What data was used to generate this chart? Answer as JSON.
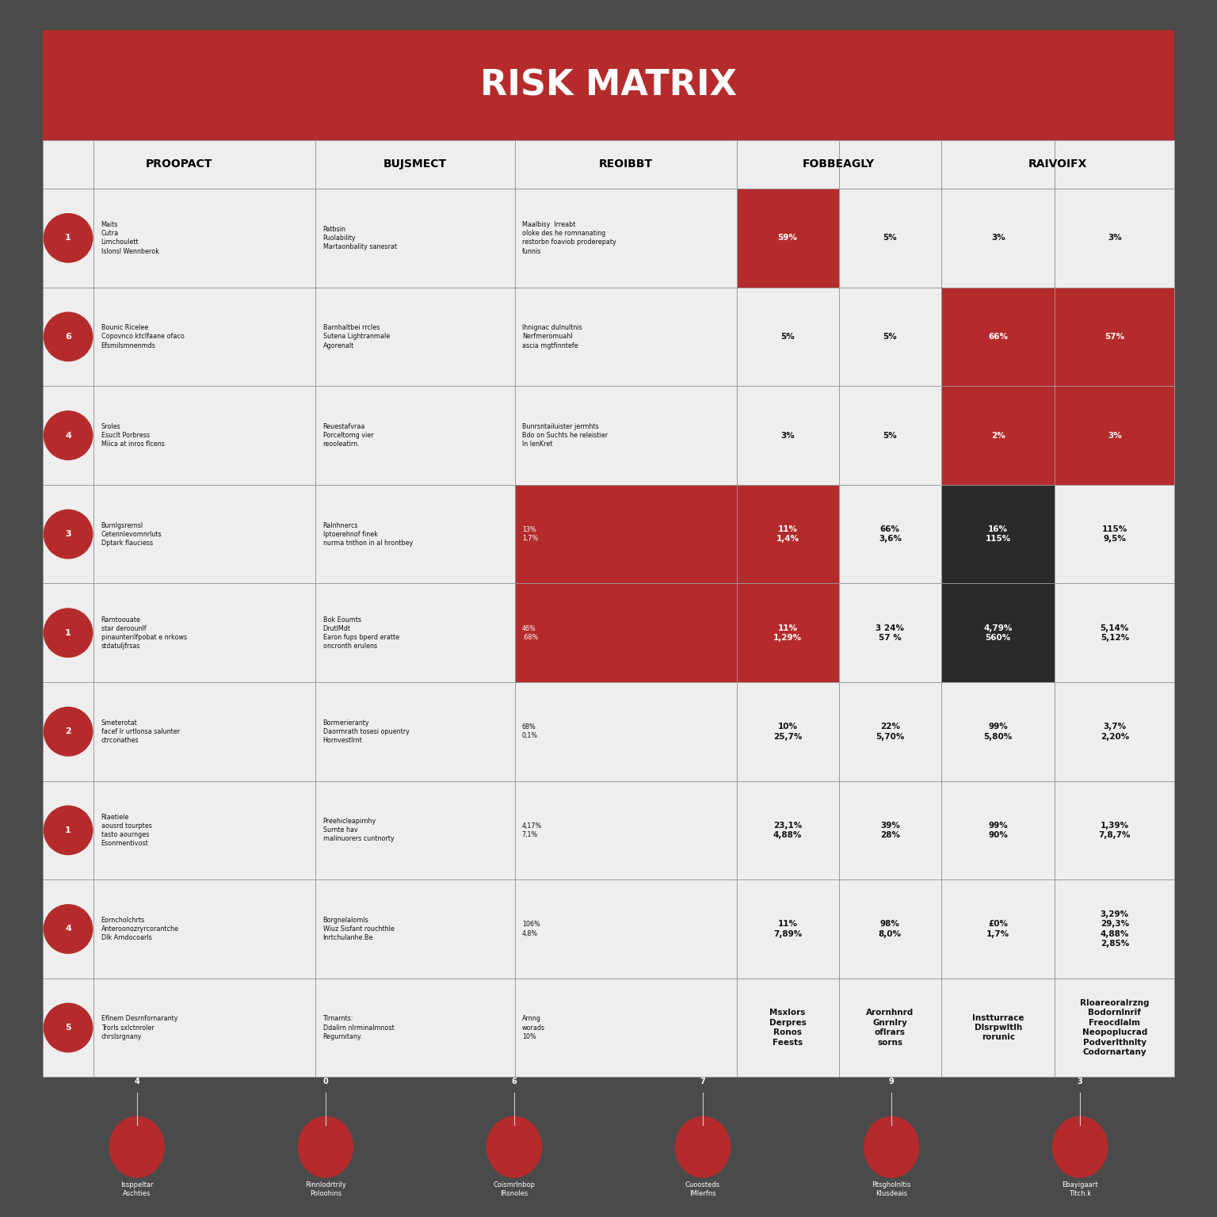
{
  "title": "RISK MATRIX",
  "title_color": "#ffffff",
  "title_bg": "#b52b2b",
  "background_color": "#4a4a4a",
  "table_bg": "#eeeeee",
  "header_bg": "#eeeeee",
  "red_cell_bg": "#b52b2b",
  "dark_cell_bg": "#2a2a2a",
  "rows": [
    {
      "number": "1",
      "label": "Maits\nCutra\nLimchoulett\nIslonsl Wennberok",
      "business": "Patbsin\nPuolability\nMartaonbality sanesrat",
      "report": "Maalbisy  Irreabt\noloke des he romnanating\nrestorbn foaviob proderepaty\nfunnis",
      "c4": "59%",
      "c5": "5%",
      "c6": "3%",
      "c7": "3%",
      "c4_red": true,
      "c5_red": false,
      "c6_red": false,
      "c7_red": false,
      "c4_dark": false,
      "c5_dark": false,
      "c6_dark": false,
      "c7_dark": false
    },
    {
      "number": "6",
      "label": "Bounic Ricelee\nCopovnco ktclfaane ofaco\nEfsmilsmnenmds",
      "business": "Barnhaltbei rrcles\nSutena Lightranmale\nAgorenalt",
      "report": "Ihnignac dulnultnis\nNerfmeromuahl\nascia mgtfinntefe",
      "c4": "5%",
      "c5": "5%",
      "c6": "66%",
      "c7": "57%",
      "c4_red": false,
      "c5_red": false,
      "c6_red": true,
      "c7_red": true,
      "c4_dark": false,
      "c5_dark": false,
      "c6_dark": false,
      "c7_dark": false
    },
    {
      "number": "4",
      "label": "Sroles\nEsuclt Porbress\nMiica at inros flcens",
      "business": "Reuestafvraa\nPorceltomg vier\nreooleatirn.",
      "report": "Bunrsntailuister jermhts\nBdo on Suchts he releistier\nIn lenKret",
      "c4": "3%",
      "c5": "5%",
      "c6": "2%",
      "c7": "3%",
      "c4_red": false,
      "c5_red": false,
      "c6_red": true,
      "c7_red": true,
      "c4_dark": false,
      "c5_dark": false,
      "c6_dark": false,
      "c7_dark": false
    },
    {
      "number": "3",
      "label": "Burnlgsrernsl\nCetennlevomnrluts\nDptark flauciess",
      "business": "Ralnhnercs\nIptoerehnof finek\nnurma tnthon in al hrontbey",
      "report": "13%\n1,7%",
      "c4": "11%\n1,4%",
      "c5": "66%\n3,6%",
      "c6": "16%\n115%",
      "c7": "115%\n9,5%",
      "c4_red": true,
      "c5_red": false,
      "c6_red": false,
      "c7_red": false,
      "c4_dark": false,
      "c5_dark": false,
      "c6_dark": true,
      "c7_dark": false,
      "report_red": true
    },
    {
      "number": "1",
      "label": "Rarntoouate\nstar deroounlf\npinaunterilfpobat e nrkows\nstdatuljfrsas",
      "business": "Bok Eoumts\nDrutlMdt\nEaron fups bperd eratte\noncronth erulens",
      "report": "46%\n.68%",
      "c4": "11%\n1,29%",
      "c5": "3 24%\n57 %",
      "c6": "4,79%\n560%",
      "c7": "5,14%\n5,12%",
      "c4_red": true,
      "c5_red": false,
      "c6_red": false,
      "c7_red": false,
      "c4_dark": false,
      "c5_dark": false,
      "c6_dark": true,
      "c7_dark": false,
      "report_red": true
    },
    {
      "number": "2",
      "label": "Smeterotat\nfacef lr urtlonsa salunter\nctrconathes",
      "business": "Bormerieranty\nDaormrath tosesi opuentry\nHornvestlrnt",
      "report": "68%\n0,1%",
      "c4": "10%\n25,7%",
      "c5": "22%\n5,70%",
      "c6": "99%\n5,80%",
      "c7": "3,7%\n2,20%",
      "c4_red": false,
      "c5_red": false,
      "c6_red": false,
      "c7_red": false,
      "c4_dark": false,
      "c5_dark": false,
      "c6_dark": false,
      "c7_dark": false
    },
    {
      "number": "1",
      "label": "Rlaetiele\naousrd tourptes\ntasto aournges\nEsonrnentivost",
      "business": "Preehicleapirnhy\nSurnte hav\nmalinuorers cuntnorty",
      "report": "4,17%\n7,1%",
      "c4": "23,1%\n4,88%",
      "c5": "39%\n28%",
      "c6": "99%\n90%",
      "c7": "1,39%\n7,8,7%",
      "c4_red": false,
      "c5_red": false,
      "c6_red": false,
      "c7_red": false,
      "c4_dark": false,
      "c5_dark": false,
      "c6_dark": false,
      "c7_dark": false
    },
    {
      "number": "4",
      "label": "Eorncholchrts\nAnteroonozryrcorantche\nDlk Arndocoarls",
      "business": "Borgnelalomls\nWiuz Sisfant rouchthle\nInrtchulanhe.Be",
      "report": "106%\n4,8%",
      "c4": "11%\n7,89%",
      "c5": "98%\n8,0%",
      "c6": "£0%\n1,7%",
      "c7": "3,29%\n29,3%\n4,88%\n2,85%",
      "c4_red": false,
      "c5_red": false,
      "c6_red": false,
      "c7_red": false,
      "c4_dark": false,
      "c5_dark": false,
      "c6_dark": false,
      "c7_dark": false
    },
    {
      "number": "5",
      "label": "Eflnem Desrnfornaranty\nTrorls sxlctnroler\nchrslsrgnany",
      "business": "Tlrnarnts:\nDdalirn nlrminalmnost\nRegurnitany.",
      "report": "Arnng\nworads\n10%",
      "c4": "Msxlors\nDerpres\nRonos\nFeests",
      "c5": "Arornhnrd\nGnrnlry\noflrars\nsorns",
      "c6": "Instturrace\nDlsrpwltlh\nrorunic",
      "c7": "Rloareoralrzng\nBodornlnrif\nFreocdlalm\nNeopoplucrad\nPodverlthnlty\nCodornartany",
      "c4_red": false,
      "c5_red": false,
      "c6_red": false,
      "c7_red": false,
      "c4_dark": false,
      "c5_dark": false,
      "c6_dark": false,
      "c7_dark": false
    }
  ],
  "legend": [
    {
      "number": "4",
      "label": "Issppeltar\nAschties"
    },
    {
      "number": "0",
      "label": "Rinnlodrtrily\nPoloohins"
    },
    {
      "number": "6",
      "label": "Coismrlnbop\nIRsnoles"
    },
    {
      "number": "7",
      "label": "Cuoosteds\nIMlerfns"
    },
    {
      "number": "9",
      "label": "Rtsgholnltis\nKlusdeais"
    },
    {
      "number": "3",
      "label": "Ebayigaart\nTltch.k"
    }
  ]
}
